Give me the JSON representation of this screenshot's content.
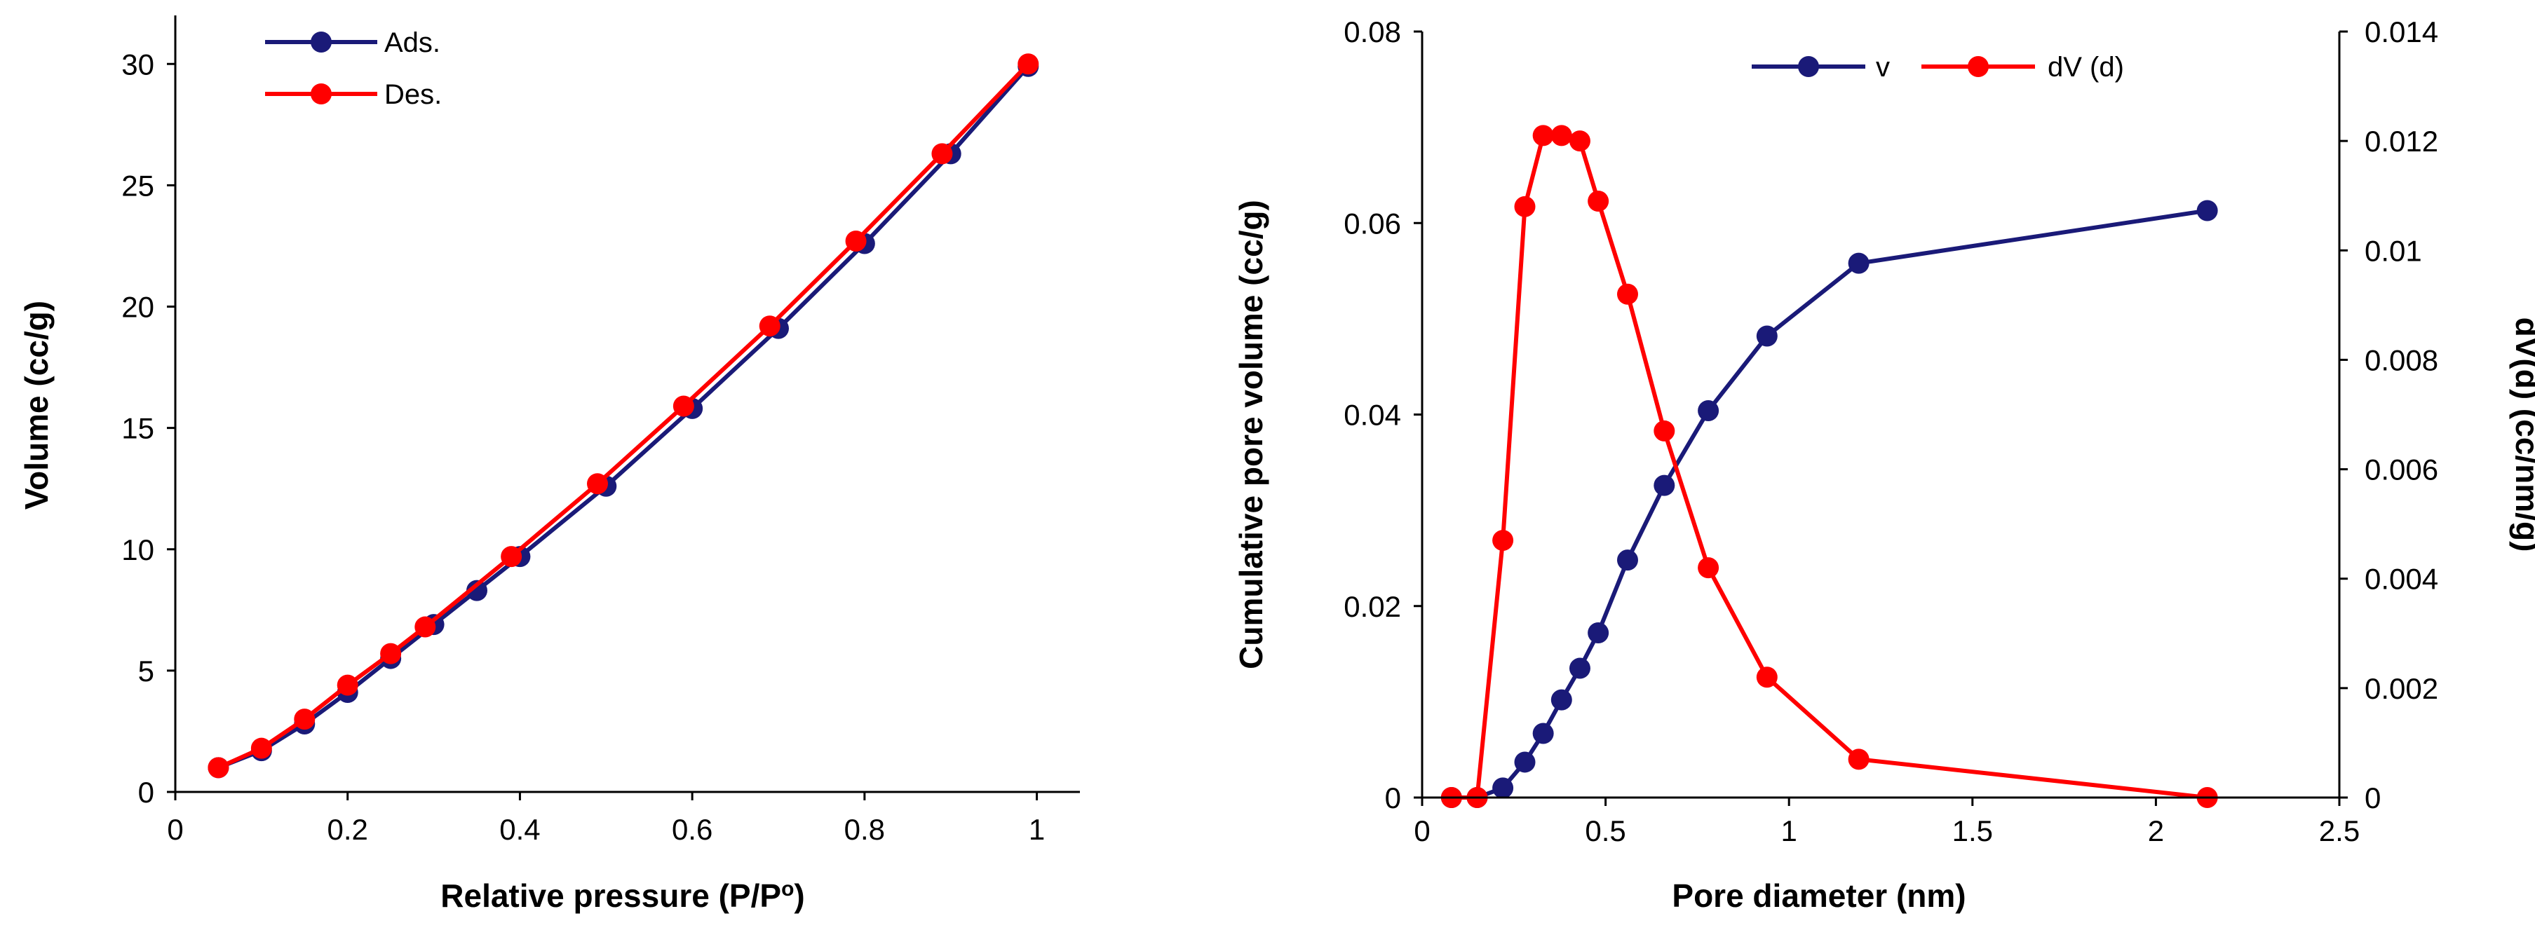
{
  "colors": {
    "series_a": "#1a1a78",
    "series_b": "#ff0000",
    "axis": "#000000",
    "background": "#ffffff"
  },
  "chart_data": [
    {
      "type": "line",
      "title": "",
      "xlabel": "Relative pressure (P/P",
      "xlabel_sup": "o",
      "xlabel_suffix": ")",
      "ylabel": "Volume (cc/g)",
      "xlim": [
        0,
        1.05
      ],
      "ylim": [
        0,
        32
      ],
      "xticks": [
        0,
        0.2,
        0.4,
        0.6,
        0.8,
        1
      ],
      "xtick_labels": [
        "0",
        "0.2",
        "0.4",
        "0.6",
        "0.8",
        "1"
      ],
      "yticks": [
        0,
        5,
        10,
        15,
        20,
        25,
        30
      ],
      "ytick_labels": [
        "0",
        "5",
        "10",
        "15",
        "20",
        "25",
        "30"
      ],
      "legend_position": "top-left",
      "series": [
        {
          "name": "Ads.",
          "color": "#1a1a78",
          "x": [
            0.05,
            0.1,
            0.15,
            0.2,
            0.25,
            0.3,
            0.35,
            0.4,
            0.5,
            0.6,
            0.7,
            0.8,
            0.9,
            0.99
          ],
          "y": [
            1.0,
            1.7,
            2.8,
            4.1,
            5.5,
            6.9,
            8.3,
            9.7,
            12.6,
            15.8,
            19.1,
            22.6,
            26.3,
            29.9
          ]
        },
        {
          "name": "Des.",
          "color": "#ff0000",
          "x": [
            0.05,
            0.1,
            0.15,
            0.2,
            0.25,
            0.29,
            0.39,
            0.49,
            0.59,
            0.69,
            0.79,
            0.89,
            0.99
          ],
          "y": [
            1.0,
            1.8,
            3.0,
            4.4,
            5.7,
            6.8,
            9.7,
            12.7,
            15.9,
            19.2,
            22.7,
            26.3,
            30.0
          ]
        }
      ]
    },
    {
      "type": "line",
      "title": "",
      "xlabel": "Pore diameter (nm)",
      "ylabel": "Cumulative pore volume (cc/g)",
      "y2label": "dV(d) (cc/nm/g)",
      "xlim": [
        0,
        2.5
      ],
      "ylim": [
        0,
        0.08
      ],
      "y2lim": [
        0,
        0.014
      ],
      "xticks": [
        0,
        0.5,
        1,
        1.5,
        2,
        2.5
      ],
      "xtick_labels": [
        "0",
        "0.5",
        "1",
        "1.5",
        "2",
        "2.5"
      ],
      "yticks": [
        0,
        0.02,
        0.04,
        0.06,
        0.08
      ],
      "ytick_labels": [
        "0",
        "0.02",
        "0.04",
        "0.06",
        "0.08"
      ],
      "y2ticks": [
        0,
        0.002,
        0.004,
        0.006,
        0.008,
        0.01,
        0.012,
        0.014
      ],
      "y2tick_labels": [
        "0",
        "0.002",
        "0.004",
        "0.006",
        "0.008",
        "0.01",
        "0.012",
        "0.014"
      ],
      "legend_position": "top-right",
      "series": [
        {
          "name": "v",
          "axis": "left",
          "color": "#1a1a78",
          "x": [
            0.08,
            0.15,
            0.22,
            0.28,
            0.33,
            0.38,
            0.43,
            0.48,
            0.56,
            0.66,
            0.78,
            0.94,
            1.19,
            2.14
          ],
          "y": [
            0,
            0,
            0.001,
            0.0037,
            0.0067,
            0.0102,
            0.0135,
            0.0172,
            0.0248,
            0.0326,
            0.0404,
            0.0482,
            0.0558,
            0.0613
          ]
        },
        {
          "name": "dV (d)",
          "axis": "right",
          "color": "#ff0000",
          "x": [
            0.08,
            0.15,
            0.22,
            0.28,
            0.33,
            0.38,
            0.43,
            0.48,
            0.56,
            0.66,
            0.78,
            0.94,
            1.19,
            2.14
          ],
          "y": [
            0,
            0,
            0.0047,
            0.0108,
            0.0121,
            0.0121,
            0.012,
            0.0109,
            0.0092,
            0.0067,
            0.0042,
            0.0022,
            0.0007,
            0
          ]
        }
      ]
    }
  ]
}
